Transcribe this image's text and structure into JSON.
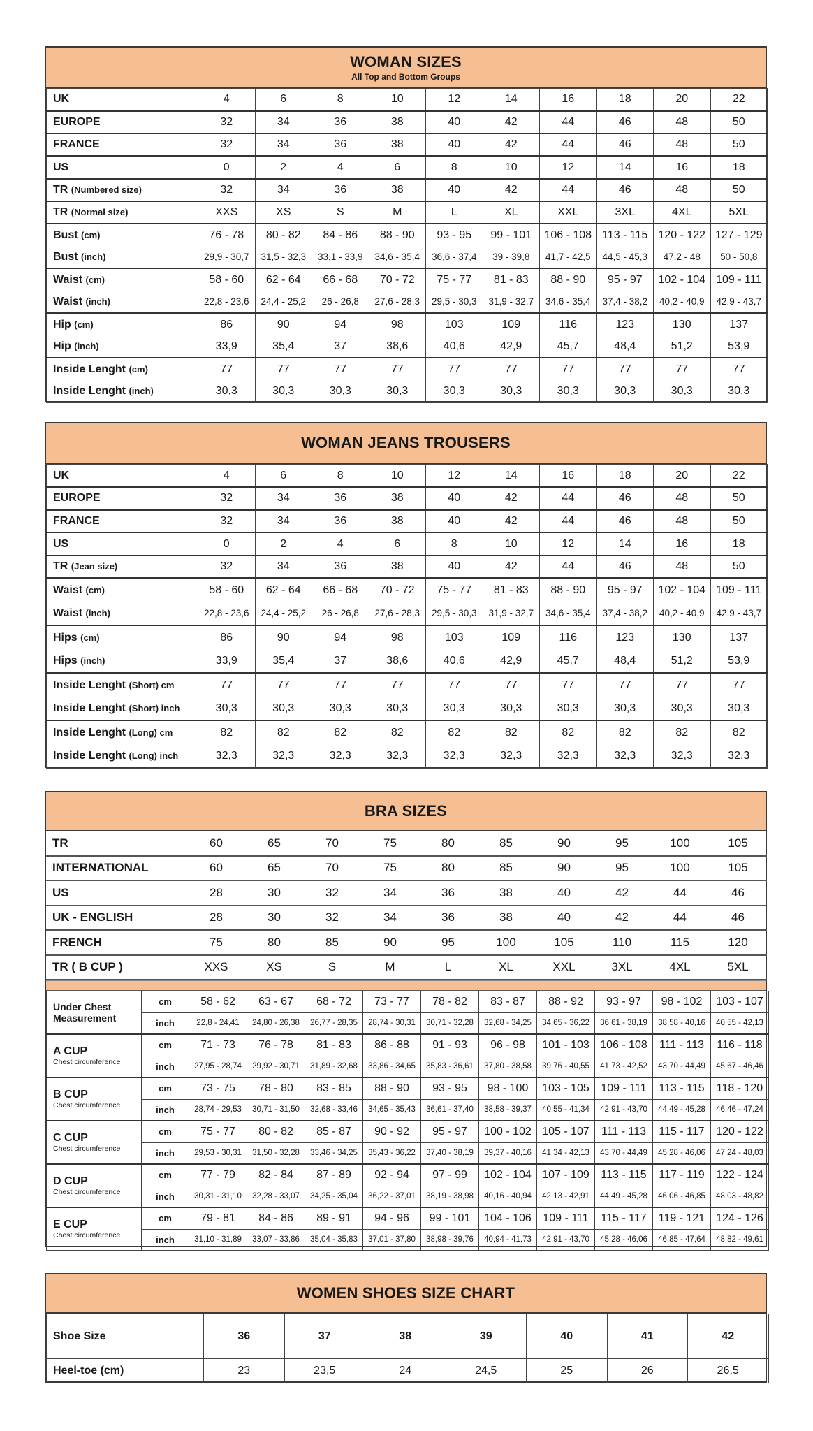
{
  "woman_sizes": {
    "title": "WOMAN SIZES",
    "subtitle": "All Top and Bottom Groups",
    "groups": [
      [
        {
          "label": "UK",
          "unit": "",
          "values": [
            "4",
            "6",
            "8",
            "10",
            "12",
            "14",
            "16",
            "18",
            "20",
            "22"
          ]
        }
      ],
      [
        {
          "label": "EUROPE",
          "unit": "",
          "values": [
            "32",
            "34",
            "36",
            "38",
            "40",
            "42",
            "44",
            "46",
            "48",
            "50"
          ]
        }
      ],
      [
        {
          "label": "FRANCE",
          "unit": "",
          "values": [
            "32",
            "34",
            "36",
            "38",
            "40",
            "42",
            "44",
            "46",
            "48",
            "50"
          ]
        }
      ],
      [
        {
          "label": "US",
          "unit": "",
          "values": [
            "0",
            "2",
            "4",
            "6",
            "8",
            "10",
            "12",
            "14",
            "16",
            "18"
          ]
        }
      ],
      [
        {
          "label": "TR",
          "unit": "(Numbered size)",
          "values": [
            "32",
            "34",
            "36",
            "38",
            "40",
            "42",
            "44",
            "46",
            "48",
            "50"
          ]
        }
      ],
      [
        {
          "label": "TR",
          "unit": "(Normal size)",
          "values": [
            "XXS",
            "XS",
            "S",
            "M",
            "L",
            "XL",
            "XXL",
            "3XL",
            "4XL",
            "5XL"
          ]
        }
      ],
      [
        {
          "label": "Bust",
          "unit": "(cm)",
          "values": [
            "76 - 78",
            "80 - 82",
            "84 - 86",
            "88 - 90",
            "93 - 95",
            "99 - 101",
            "106 - 108",
            "113 - 115",
            "120 - 122",
            "127 - 129"
          ]
        },
        {
          "label": "Bust",
          "unit": "(inch)",
          "small": true,
          "values": [
            "29,9 - 30,7",
            "31,5 - 32,3",
            "33,1 - 33,9",
            "34,6 - 35,4",
            "36,6 - 37,4",
            "39 - 39,8",
            "41,7 - 42,5",
            "44,5 - 45,3",
            "47,2 - 48",
            "50 - 50,8"
          ]
        }
      ],
      [
        {
          "label": "Waist",
          "unit": "(cm)",
          "values": [
            "58 - 60",
            "62 - 64",
            "66 - 68",
            "70 - 72",
            "75 - 77",
            "81 - 83",
            "88 - 90",
            "95 - 97",
            "102 - 104",
            "109 - 111"
          ]
        },
        {
          "label": "Waist",
          "unit": "(inch)",
          "small": true,
          "values": [
            "22,8 - 23,6",
            "24,4 - 25,2",
            "26 - 26,8",
            "27,6 - 28,3",
            "29,5 - 30,3",
            "31,9 - 32,7",
            "34,6 - 35,4",
            "37,4 - 38,2",
            "40,2 - 40,9",
            "42,9 - 43,7"
          ]
        }
      ],
      [
        {
          "label": "Hip",
          "unit": "(cm)",
          "values": [
            "86",
            "90",
            "94",
            "98",
            "103",
            "109",
            "116",
            "123",
            "130",
            "137"
          ]
        },
        {
          "label": "Hip",
          "unit": "(inch)",
          "values": [
            "33,9",
            "35,4",
            "37",
            "38,6",
            "40,6",
            "42,9",
            "45,7",
            "48,4",
            "51,2",
            "53,9"
          ]
        }
      ],
      [
        {
          "label": "Inside Lenght",
          "unit": "(cm)",
          "values": [
            "77",
            "77",
            "77",
            "77",
            "77",
            "77",
            "77",
            "77",
            "77",
            "77"
          ]
        },
        {
          "label": "Inside Lenght",
          "unit": "(inch)",
          "values": [
            "30,3",
            "30,3",
            "30,3",
            "30,3",
            "30,3",
            "30,3",
            "30,3",
            "30,3",
            "30,3",
            "30,3"
          ]
        }
      ]
    ]
  },
  "jeans": {
    "title": "WOMAN JEANS TROUSERS",
    "groups": [
      [
        {
          "label": "UK",
          "unit": "",
          "values": [
            "4",
            "6",
            "8",
            "10",
            "12",
            "14",
            "16",
            "18",
            "20",
            "22"
          ]
        }
      ],
      [
        {
          "label": "EUROPE",
          "unit": "",
          "values": [
            "32",
            "34",
            "36",
            "38",
            "40",
            "42",
            "44",
            "46",
            "48",
            "50"
          ]
        }
      ],
      [
        {
          "label": "FRANCE",
          "unit": "",
          "values": [
            "32",
            "34",
            "36",
            "38",
            "40",
            "42",
            "44",
            "46",
            "48",
            "50"
          ]
        }
      ],
      [
        {
          "label": "US",
          "unit": "",
          "values": [
            "0",
            "2",
            "4",
            "6",
            "8",
            "10",
            "12",
            "14",
            "16",
            "18"
          ]
        }
      ],
      [
        {
          "label": "TR",
          "unit": "(Jean size)",
          "values": [
            "32",
            "34",
            "36",
            "38",
            "40",
            "42",
            "44",
            "46",
            "48",
            "50"
          ]
        }
      ],
      [
        {
          "label": "Waist",
          "unit": "(cm)",
          "values": [
            "58 - 60",
            "62 - 64",
            "66 - 68",
            "70 - 72",
            "75 - 77",
            "81 - 83",
            "88 - 90",
            "95 - 97",
            "102 - 104",
            "109 - 111"
          ]
        },
        {
          "label": "Waist",
          "unit": "(inch)",
          "small": true,
          "values": [
            "22,8 - 23,6",
            "24,4 - 25,2",
            "26 - 26,8",
            "27,6 - 28,3",
            "29,5 - 30,3",
            "31,9 - 32,7",
            "34,6 - 35,4",
            "37,4 - 38,2",
            "40,2 - 40,9",
            "42,9 - 43,7"
          ]
        }
      ],
      [
        {
          "label": "Hips",
          "unit": "(cm)",
          "values": [
            "86",
            "90",
            "94",
            "98",
            "103",
            "109",
            "116",
            "123",
            "130",
            "137"
          ]
        },
        {
          "label": "Hips",
          "unit": "(inch)",
          "values": [
            "33,9",
            "35,4",
            "37",
            "38,6",
            "40,6",
            "42,9",
            "45,7",
            "48,4",
            "51,2",
            "53,9"
          ]
        }
      ],
      [
        {
          "label": "Inside Lenght",
          "unit": "(Short) cm",
          "values": [
            "77",
            "77",
            "77",
            "77",
            "77",
            "77",
            "77",
            "77",
            "77",
            "77"
          ]
        },
        {
          "label": "Inside Lenght",
          "unit": "(Short) inch",
          "values": [
            "30,3",
            "30,3",
            "30,3",
            "30,3",
            "30,3",
            "30,3",
            "30,3",
            "30,3",
            "30,3",
            "30,3"
          ]
        }
      ],
      [
        {
          "label": "Inside Lenght",
          "unit": "(Long) cm",
          "values": [
            "82",
            "82",
            "82",
            "82",
            "82",
            "82",
            "82",
            "82",
            "82",
            "82"
          ]
        },
        {
          "label": "Inside Lenght",
          "unit": "(Long) inch",
          "values": [
            "32,3",
            "32,3",
            "32,3",
            "32,3",
            "32,3",
            "32,3",
            "32,3",
            "32,3",
            "32,3",
            "32,3"
          ]
        }
      ]
    ]
  },
  "bra": {
    "title": "BRA SIZES",
    "size_rows": [
      {
        "label": "TR",
        "values": [
          "60",
          "65",
          "70",
          "75",
          "80",
          "85",
          "90",
          "95",
          "100",
          "105"
        ]
      },
      {
        "label": "INTERNATIONAL",
        "values": [
          "60",
          "65",
          "70",
          "75",
          "80",
          "85",
          "90",
          "95",
          "100",
          "105"
        ]
      },
      {
        "label": "US",
        "values": [
          "28",
          "30",
          "32",
          "34",
          "36",
          "38",
          "40",
          "42",
          "44",
          "46"
        ]
      },
      {
        "label": "UK - ENGLISH",
        "values": [
          "28",
          "30",
          "32",
          "34",
          "36",
          "38",
          "40",
          "42",
          "44",
          "46"
        ]
      },
      {
        "label": "FRENCH",
        "values": [
          "75",
          "80",
          "85",
          "90",
          "95",
          "100",
          "105",
          "110",
          "115",
          "120"
        ]
      },
      {
        "label": "TR ( B CUP )",
        "values": [
          "XXS",
          "XS",
          "S",
          "M",
          "L",
          "XL",
          "XXL",
          "3XL",
          "4XL",
          "5XL"
        ]
      }
    ],
    "unit_cm": "cm",
    "unit_inch": "inch",
    "cup_rows": [
      {
        "label": "Under Chest Measurement",
        "caption": "",
        "cm": [
          "58 - 62",
          "63 - 67",
          "68 - 72",
          "73 - 77",
          "78 - 82",
          "83 - 87",
          "88 - 92",
          "93 - 97",
          "98 - 102",
          "103 - 107"
        ],
        "inch": [
          "22,8 - 24,41",
          "24,80 - 26,38",
          "26,77 - 28,35",
          "28,74 - 30,31",
          "30,71 - 32,28",
          "32,68 - 34,25",
          "34,65 - 36,22",
          "36,61 - 38,19",
          "38,58 - 40,16",
          "40,55 - 42,13"
        ]
      },
      {
        "label": "A CUP",
        "caption": "Chest circumference",
        "cm": [
          "71 - 73",
          "76 - 78",
          "81 - 83",
          "86 - 88",
          "91 - 93",
          "96 - 98",
          "101 - 103",
          "106 - 108",
          "111 - 113",
          "116 - 118"
        ],
        "inch": [
          "27,95 - 28,74",
          "29,92 - 30,71",
          "31,89 - 32,68",
          "33,86 - 34,65",
          "35,83 - 36,61",
          "37,80 - 38,58",
          "39,76 - 40,55",
          "41,73 - 42,52",
          "43,70 - 44,49",
          "45,67 - 46,46"
        ]
      },
      {
        "label": "B CUP",
        "caption": "Chest circumference",
        "cm": [
          "73 - 75",
          "78 - 80",
          "83 - 85",
          "88 - 90",
          "93 - 95",
          "98 - 100",
          "103 - 105",
          "109 - 111",
          "113 - 115",
          "118 - 120"
        ],
        "inch": [
          "28,74 - 29,53",
          "30,71 - 31,50",
          "32,68 - 33,46",
          "34,65 - 35,43",
          "36,61 - 37,40",
          "38,58 - 39,37",
          "40,55 - 41,34",
          "42,91 - 43,70",
          "44,49 - 45,28",
          "46,46 - 47,24"
        ]
      },
      {
        "label": "C CUP",
        "caption": "Chest circumference",
        "cm": [
          "75 - 77",
          "80 - 82",
          "85 - 87",
          "90 - 92",
          "95 - 97",
          "100 - 102",
          "105 - 107",
          "111 - 113",
          "115 - 117",
          "120 - 122"
        ],
        "inch": [
          "29,53 - 30,31",
          "31,50 - 32,28",
          "33,46 - 34,25",
          "35,43 - 36,22",
          "37,40 - 38,19",
          "39,37 - 40,16",
          "41,34 - 42,13",
          "43,70 - 44,49",
          "45,28 - 46,06",
          "47,24 - 48,03"
        ]
      },
      {
        "label": "D CUP",
        "caption": "Chest circumference",
        "cm": [
          "77 - 79",
          "82 - 84",
          "87 - 89",
          "92 - 94",
          "97 - 99",
          "102 - 104",
          "107 - 109",
          "113 - 115",
          "117 - 119",
          "122 - 124"
        ],
        "inch": [
          "30,31 - 31,10",
          "32,28 - 33,07",
          "34,25 - 35,04",
          "36,22 - 37,01",
          "38,19 - 38,98",
          "40,16 - 40,94",
          "42,13 - 42,91",
          "44,49 - 45,28",
          "46,06 - 46,85",
          "48,03 - 48,82"
        ]
      },
      {
        "label": "E CUP",
        "caption": "Chest circumference",
        "cm": [
          "79 - 81",
          "84 - 86",
          "89 - 91",
          "94 - 96",
          "99 - 101",
          "104 - 106",
          "109 - 111",
          "115 - 117",
          "119 - 121",
          "124 - 126"
        ],
        "inch": [
          "31,10 - 31,89",
          "33,07 - 33,86",
          "35,04 - 35,83",
          "37,01 - 37,80",
          "38,98 - 39,76",
          "40,94 - 41,73",
          "42,91 - 43,70",
          "45,28 - 46,06",
          "46,85 - 47,64",
          "48,82 - 49,61"
        ]
      }
    ]
  },
  "shoes": {
    "title": "WOMEN SHOES SIZE CHART",
    "rows": [
      {
        "label": "Shoe Size",
        "values": [
          "36",
          "37",
          "38",
          "39",
          "40",
          "41",
          "42"
        ]
      },
      {
        "label": "Heel-toe (cm)",
        "values": [
          "23",
          "23,5",
          "24",
          "24,5",
          "25",
          "26",
          "26,5"
        ]
      }
    ]
  },
  "colors": {
    "header_fill": "#F6BE93",
    "border": "#3a3a3a"
  }
}
